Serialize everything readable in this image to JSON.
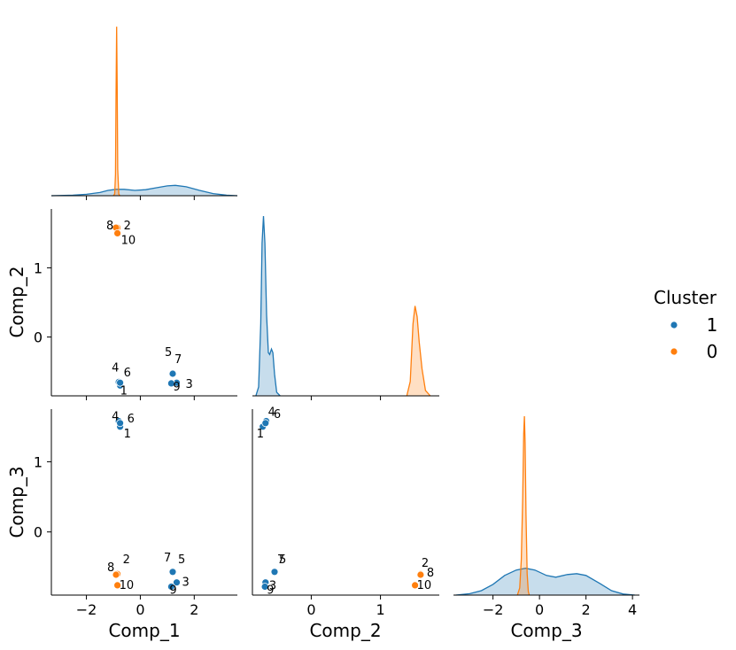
{
  "chart_data": {
    "type": "scatter",
    "kind": "pairplot",
    "corner": true,
    "variables": [
      "Comp_1",
      "Comp_2",
      "Comp_3"
    ],
    "tick_labels": {
      "Comp_1": [
        "−2",
        "0",
        "2"
      ],
      "Comp_2": [
        "0",
        "1"
      ],
      "Comp_3": [
        "−2",
        "0",
        "2",
        "4"
      ],
      "Comp_2_y": [
        "0",
        "1"
      ],
      "Comp_3_y": [
        "0",
        "1"
      ]
    },
    "ranges": {
      "Comp_1": [
        -3.3,
        3.6
      ],
      "Comp_2": [
        -0.85,
        1.85
      ],
      "Comp_3": [
        -0.9,
        1.75
      ],
      "Comp_3_diag_x": [
        -3.7,
        4.3
      ]
    },
    "legend": {
      "title": "Cluster",
      "placement": "right",
      "entries": [
        {
          "label": "1",
          "color": "#1f77b4"
        },
        {
          "label": "0",
          "color": "#ff7f0e"
        }
      ]
    },
    "points": [
      {
        "id": "1",
        "cluster": "1",
        "c1": -0.75,
        "c2": -0.7,
        "c3": 1.5
      },
      {
        "id": "2",
        "cluster": "0",
        "c1": -0.85,
        "c2": 1.58,
        "c3": -0.6
      },
      {
        "id": "3",
        "cluster": "1",
        "c1": 1.35,
        "c2": -0.66,
        "c3": -0.72
      },
      {
        "id": "4",
        "cluster": "1",
        "c1": -0.8,
        "c2": -0.65,
        "c3": 1.58
      },
      {
        "id": "5",
        "cluster": "1",
        "c1": 1.2,
        "c2": -0.53,
        "c3": -0.57
      },
      {
        "id": "6",
        "cluster": "1",
        "c1": -0.75,
        "c2": -0.66,
        "c3": 1.55
      },
      {
        "id": "7",
        "cluster": "1",
        "c1": 1.2,
        "c2": -0.53,
        "c3": -0.57
      },
      {
        "id": "8",
        "cluster": "0",
        "c1": -0.9,
        "c2": 1.58,
        "c3": -0.61
      },
      {
        "id": "9",
        "cluster": "1",
        "c1": 1.15,
        "c2": -0.67,
        "c3": -0.78
      },
      {
        "id": "10",
        "cluster": "0",
        "c1": -0.85,
        "c2": 1.5,
        "c3": -0.76
      }
    ],
    "kde": {
      "Comp_1": {
        "1": [
          [
            -3.3,
            0
          ],
          [
            -2.5,
            0.003
          ],
          [
            -2.0,
            0.008
          ],
          [
            -1.5,
            0.018
          ],
          [
            -1.2,
            0.03
          ],
          [
            -0.9,
            0.036
          ],
          [
            -0.6,
            0.036
          ],
          [
            -0.2,
            0.03
          ],
          [
            0.2,
            0.034
          ],
          [
            0.6,
            0.045
          ],
          [
            1.0,
            0.055
          ],
          [
            1.3,
            0.058
          ],
          [
            1.7,
            0.05
          ],
          [
            2.2,
            0.03
          ],
          [
            2.7,
            0.012
          ],
          [
            3.2,
            0.003
          ],
          [
            3.6,
            0
          ]
        ],
        "0": [
          [
            -1.0,
            0
          ],
          [
            -0.95,
            0.01
          ],
          [
            -0.92,
            0.12
          ],
          [
            -0.9,
            0.55
          ],
          [
            -0.88,
            0.95
          ],
          [
            -0.86,
            0.62
          ],
          [
            -0.84,
            0.15
          ],
          [
            -0.8,
            0.01
          ],
          [
            -0.76,
            0
          ]
        ]
      },
      "Comp_2": {
        "1": [
          [
            -0.8,
            0
          ],
          [
            -0.76,
            0.05
          ],
          [
            -0.73,
            0.4
          ],
          [
            -0.71,
            0.85
          ],
          [
            -0.69,
            1.0
          ],
          [
            -0.67,
            0.85
          ],
          [
            -0.645,
            0.45
          ],
          [
            -0.62,
            0.24
          ],
          [
            -0.6,
            0.23
          ],
          [
            -0.575,
            0.26
          ],
          [
            -0.555,
            0.24
          ],
          [
            -0.53,
            0.12
          ],
          [
            -0.5,
            0.02
          ],
          [
            -0.45,
            0
          ]
        ],
        "0": [
          [
            1.38,
            0
          ],
          [
            1.43,
            0.08
          ],
          [
            1.47,
            0.4
          ],
          [
            1.5,
            0.5
          ],
          [
            1.53,
            0.44
          ],
          [
            1.56,
            0.3
          ],
          [
            1.6,
            0.15
          ],
          [
            1.65,
            0.03
          ],
          [
            1.72,
            0
          ]
        ]
      },
      "Comp_3": {
        "1": [
          [
            -3.6,
            0
          ],
          [
            -3.0,
            0.008
          ],
          [
            -2.5,
            0.025
          ],
          [
            -2.0,
            0.06
          ],
          [
            -1.5,
            0.11
          ],
          [
            -1.0,
            0.14
          ],
          [
            -0.6,
            0.15
          ],
          [
            -0.2,
            0.14
          ],
          [
            0.3,
            0.11
          ],
          [
            0.7,
            0.1
          ],
          [
            1.2,
            0.115
          ],
          [
            1.6,
            0.12
          ],
          [
            2.0,
            0.11
          ],
          [
            2.6,
            0.065
          ],
          [
            3.1,
            0.025
          ],
          [
            3.6,
            0.006
          ],
          [
            4.1,
            0
          ]
        ],
        "0": [
          [
            -0.95,
            0
          ],
          [
            -0.85,
            0.04
          ],
          [
            -0.78,
            0.2
          ],
          [
            -0.72,
            0.55
          ],
          [
            -0.68,
            0.9
          ],
          [
            -0.65,
            1.0
          ],
          [
            -0.62,
            0.85
          ],
          [
            -0.58,
            0.45
          ],
          [
            -0.53,
            0.12
          ],
          [
            -0.48,
            0.02
          ],
          [
            -0.44,
            0
          ]
        ]
      }
    }
  }
}
